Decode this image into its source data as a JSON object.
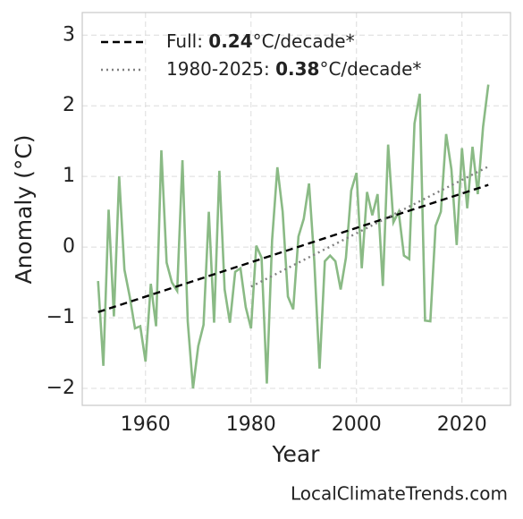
{
  "chart_data": {
    "type": "line",
    "xlabel": "Year",
    "ylabel": "Anomaly (°C)",
    "footer": "LocalClimateTrends.com",
    "xlim": [
      1948,
      2029.2
    ],
    "ylim": [
      -2.24,
      3.32
    ],
    "xticks": [
      1960,
      1980,
      2000,
      2020
    ],
    "yticks": [
      {
        "value": -2,
        "label": "−2"
      },
      {
        "value": -1,
        "label": "−1"
      },
      0,
      1,
      2,
      3
    ],
    "grid": true,
    "legend": "upper left",
    "series": [
      {
        "name": null,
        "color": "#8aba85",
        "x": [
          1951,
          1952,
          1953,
          1954,
          1955,
          1956,
          1957,
          1958,
          1959,
          1960,
          1961,
          1962,
          1963,
          1964,
          1965,
          1966,
          1967,
          1968,
          1969,
          1970,
          1971,
          1972,
          1973,
          1974,
          1975,
          1976,
          1977,
          1978,
          1979,
          1980,
          1981,
          1982,
          1983,
          1984,
          1985,
          1986,
          1987,
          1988,
          1989,
          1990,
          1991,
          1992,
          1993,
          1994,
          1995,
          1996,
          1997,
          1998,
          1999,
          2000,
          2001,
          2002,
          2003,
          2004,
          2005,
          2006,
          2007,
          2008,
          2009,
          2010,
          2011,
          2012,
          2013,
          2014,
          2015,
          2016,
          2017,
          2018,
          2019,
          2020,
          2021,
          2022,
          2023,
          2024,
          2025
        ],
        "values": [
          -0.48,
          -1.68,
          0.53,
          -0.98,
          1.0,
          -0.32,
          -0.7,
          -1.15,
          -1.12,
          -1.62,
          -0.52,
          -1.12,
          1.37,
          -0.22,
          -0.5,
          -0.62,
          1.23,
          -1.05,
          -2.0,
          -1.4,
          -1.1,
          0.5,
          -1.07,
          1.08,
          -0.6,
          -1.07,
          -0.35,
          -0.3,
          -0.85,
          -1.15,
          0.02,
          -0.15,
          -1.93,
          0.1,
          1.13,
          0.5,
          -0.7,
          -0.88,
          0.15,
          0.4,
          0.9,
          -0.2,
          -1.72,
          -0.2,
          -0.12,
          -0.2,
          -0.6,
          -0.15,
          0.8,
          1.05,
          -0.3,
          0.78,
          0.45,
          0.75,
          -0.55,
          1.45,
          0.35,
          0.5,
          -0.12,
          -0.17,
          1.75,
          2.17,
          -1.04,
          -1.05,
          0.3,
          0.5,
          1.6,
          1.1,
          0.03,
          1.4,
          0.55,
          1.42,
          0.75,
          1.7,
          2.3
        ]
      },
      {
        "name": [
          "Full: ",
          "0.24",
          "°C/decade*"
        ],
        "color": "#000000",
        "dash": "8,5",
        "x": [
          1951,
          2025
        ],
        "values": [
          -0.92,
          0.88
        ]
      },
      {
        "name": [
          "1980-2025: ",
          "0.38",
          "°C/decade*"
        ],
        "color": "#808080",
        "dash": "2,4",
        "x": [
          1980,
          2025
        ],
        "values": [
          -0.56,
          1.14
        ]
      }
    ]
  }
}
